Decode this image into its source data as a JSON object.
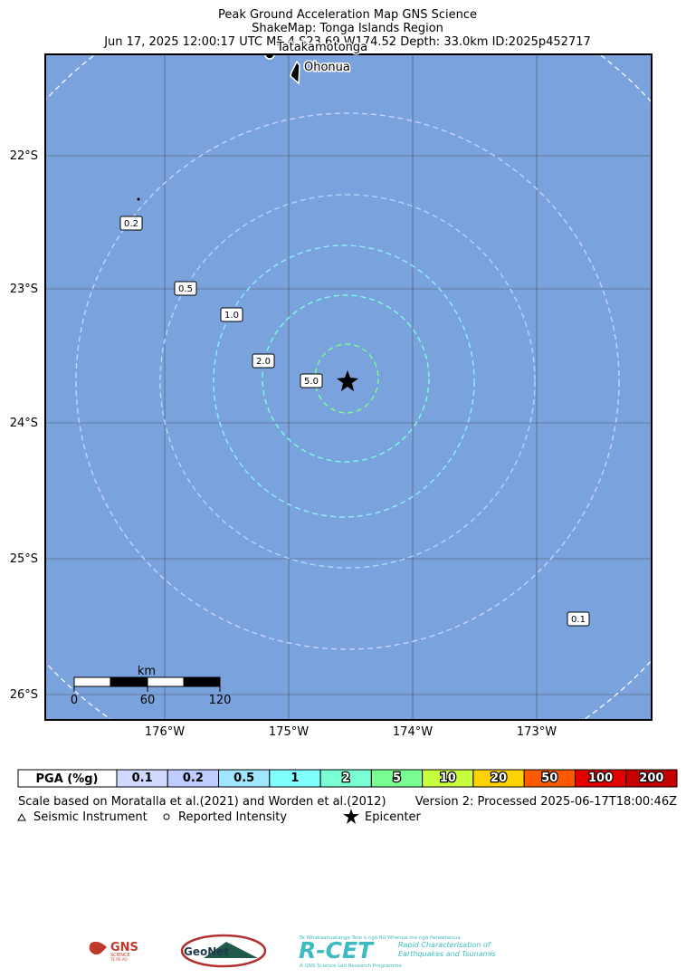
{
  "header": {
    "title": "Peak Ground Acceleration Map GNS Science",
    "subtitle": "ShakeMap: Tonga Islands Region",
    "event": "Jun 17, 2025 12:00:17 UTC M5.4 S23.69 W174.52 Depth: 33.0km ID:2025p452717"
  },
  "map": {
    "places": [
      "Tatakamotonga",
      "Ohonua"
    ],
    "lat_labels": [
      "22°S",
      "23°S",
      "24°S",
      "25°S",
      "26°S"
    ],
    "lon_labels": [
      "176°W",
      "175°W",
      "174°W",
      "173°W"
    ],
    "contour_labels": [
      "0.2",
      "0.5",
      "1.0",
      "2.0",
      "5.0",
      "0.1"
    ],
    "scale": {
      "unit": "km",
      "ticks": [
        "0",
        "60",
        "120"
      ]
    }
  },
  "legend": {
    "title": "PGA (%g)",
    "levels": [
      {
        "label": "0.1",
        "color": "#d2d9ff"
      },
      {
        "label": "0.2",
        "color": "#bfccff"
      },
      {
        "label": "0.5",
        "color": "#a0e6ff"
      },
      {
        "label": "1",
        "color": "#80ffff"
      },
      {
        "label": "2",
        "color": "#7affd4"
      },
      {
        "label": "5",
        "color": "#7aff93"
      },
      {
        "label": "10",
        "color": "#c7ff3f"
      },
      {
        "label": "20",
        "color": "#ffd200"
      },
      {
        "label": "50",
        "color": "#ff5a00"
      },
      {
        "label": "100",
        "color": "#e20000"
      },
      {
        "label": "200",
        "color": "#c40000"
      }
    ],
    "note": "Scale based on Moratalla et al.(2021) and Worden et al.(2012)",
    "version": "Version 2: Processed 2025-06-17T18:00:46Z",
    "symbols": [
      "Seismic Instrument",
      "Reported Intensity",
      "Epicenter"
    ]
  },
  "logos": {
    "gns": "GNS",
    "gns_sub": "SCIENCE",
    "gns_maori": "TE PŪ AO",
    "geonet": "GeoNet",
    "rcet": "R-CET",
    "rcet_top": "Te Whakaahuatanga Tere o ngā Rū Whenua me ngā Parawhenua",
    "rcet_line1": "Rapid Characterisation of",
    "rcet_line2": "Earthquakes and Tsunamis",
    "rcet_bottom": "A GNS Science Led Research Programme"
  }
}
